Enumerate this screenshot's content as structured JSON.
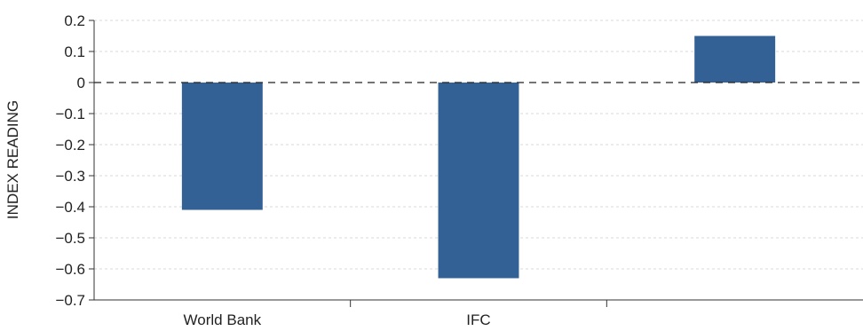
{
  "chart_data": {
    "type": "bar",
    "categories": [
      "World Bank",
      "IFC",
      ""
    ],
    "values": [
      -0.41,
      -0.63,
      0.15
    ],
    "title": "",
    "xlabel": "",
    "ylabel": "INDEX READING",
    "ylim": [
      -0.7,
      0.2
    ],
    "yticks": [
      0.2,
      0.1,
      0,
      -0.1,
      -0.2,
      -0.3,
      -0.4,
      -0.5,
      -0.6,
      -0.7
    ],
    "ytick_labels": [
      "0.2",
      "0.1",
      "0",
      "−0.1",
      "−0.2",
      "−0.3",
      "−0.4",
      "−0.5",
      "−0.6",
      "−0.7"
    ],
    "grid": "horizontal dotted",
    "zero_line": "dashed",
    "bar_color": "#336195",
    "grid_color": "#d9d9d9",
    "axis_color": "#333333"
  }
}
